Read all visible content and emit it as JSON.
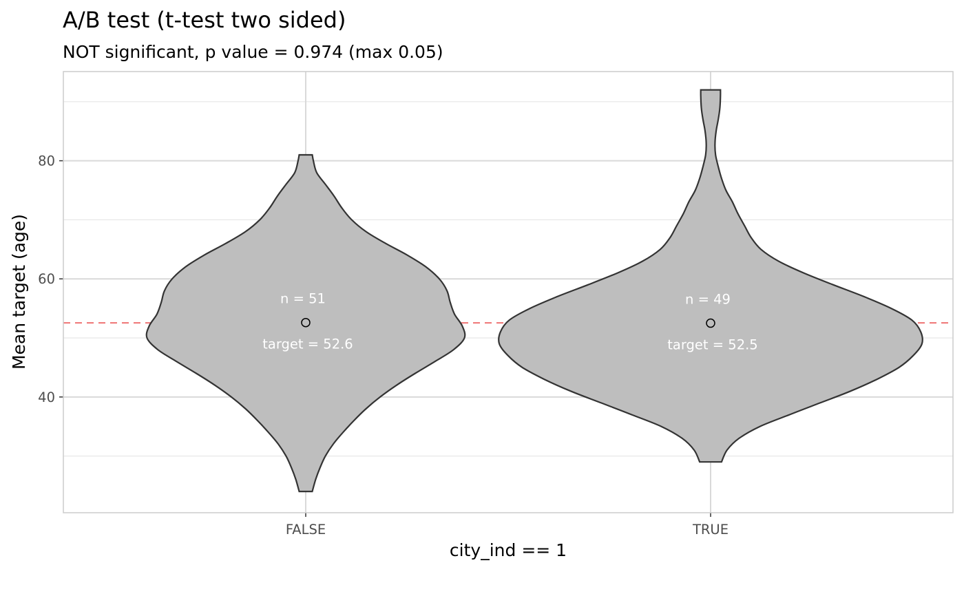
{
  "chart_data": {
    "type": "violin",
    "title": "A/B test (t-test two sided)",
    "subtitle": "NOT significant, p value = 0.974 (max 0.05)",
    "xlabel": "city_ind == 1",
    "ylabel": "Mean target (age)",
    "categories": [
      "FALSE",
      "TRUE"
    ],
    "ylim": [
      20.4,
      95.1
    ],
    "y_ticks": [
      40,
      60,
      80
    ],
    "y_minor_ticks": [
      30,
      50,
      70,
      90
    ],
    "grid": true,
    "reference_line": {
      "y": 52.55,
      "color": "#f08080",
      "style": "dashed"
    },
    "violins": [
      {
        "category": "FALSE",
        "mean": 52.6,
        "n_label": "n = 51",
        "target_label": "target = 52.6",
        "profile": [
          [
            24,
            0.06
          ],
          [
            26,
            0.09
          ],
          [
            28,
            0.13
          ],
          [
            30,
            0.18
          ],
          [
            32,
            0.25
          ],
          [
            34,
            0.34
          ],
          [
            36,
            0.44
          ],
          [
            38,
            0.55
          ],
          [
            40,
            0.68
          ],
          [
            42,
            0.83
          ],
          [
            44,
            1.0
          ],
          [
            46,
            1.18
          ],
          [
            48,
            1.35
          ],
          [
            50,
            1.45
          ],
          [
            52,
            1.43
          ],
          [
            54,
            1.36
          ],
          [
            56,
            1.32
          ],
          [
            58,
            1.29
          ],
          [
            60,
            1.22
          ],
          [
            62,
            1.1
          ],
          [
            64,
            0.93
          ],
          [
            66,
            0.73
          ],
          [
            68,
            0.55
          ],
          [
            70,
            0.42
          ],
          [
            72,
            0.33
          ],
          [
            74,
            0.26
          ],
          [
            76,
            0.18
          ],
          [
            78,
            0.1
          ],
          [
            80,
            0.07
          ],
          [
            81,
            0.06
          ]
        ]
      },
      {
        "category": "TRUE",
        "mean": 52.5,
        "n_label": "n = 49",
        "target_label": "target = 52.5",
        "profile": [
          [
            29,
            0.1
          ],
          [
            31,
            0.15
          ],
          [
            33,
            0.26
          ],
          [
            35,
            0.45
          ],
          [
            37,
            0.72
          ],
          [
            39,
            1.0
          ],
          [
            41,
            1.28
          ],
          [
            43,
            1.52
          ],
          [
            45,
            1.72
          ],
          [
            47,
            1.85
          ],
          [
            49,
            1.93
          ],
          [
            51,
            1.92
          ],
          [
            53,
            1.84
          ],
          [
            55,
            1.65
          ],
          [
            57,
            1.4
          ],
          [
            59,
            1.12
          ],
          [
            61,
            0.85
          ],
          [
            63,
            0.62
          ],
          [
            65,
            0.46
          ],
          [
            67,
            0.37
          ],
          [
            69,
            0.31
          ],
          [
            71,
            0.25
          ],
          [
            73,
            0.2
          ],
          [
            75,
            0.14
          ],
          [
            77,
            0.1
          ],
          [
            79,
            0.07
          ],
          [
            81,
            0.045
          ],
          [
            83,
            0.04
          ],
          [
            85,
            0.05
          ],
          [
            87,
            0.07
          ],
          [
            89,
            0.085
          ],
          [
            91,
            0.09
          ],
          [
            92,
            0.09
          ]
        ]
      }
    ]
  },
  "colors": {
    "panel_border": "#cccccc",
    "grid_major": "#d9d9d9",
    "grid_minor": "#e8e8e8",
    "violin_fill": "#bebebe",
    "violin_stroke": "#333333",
    "mean_point": "#000000"
  }
}
